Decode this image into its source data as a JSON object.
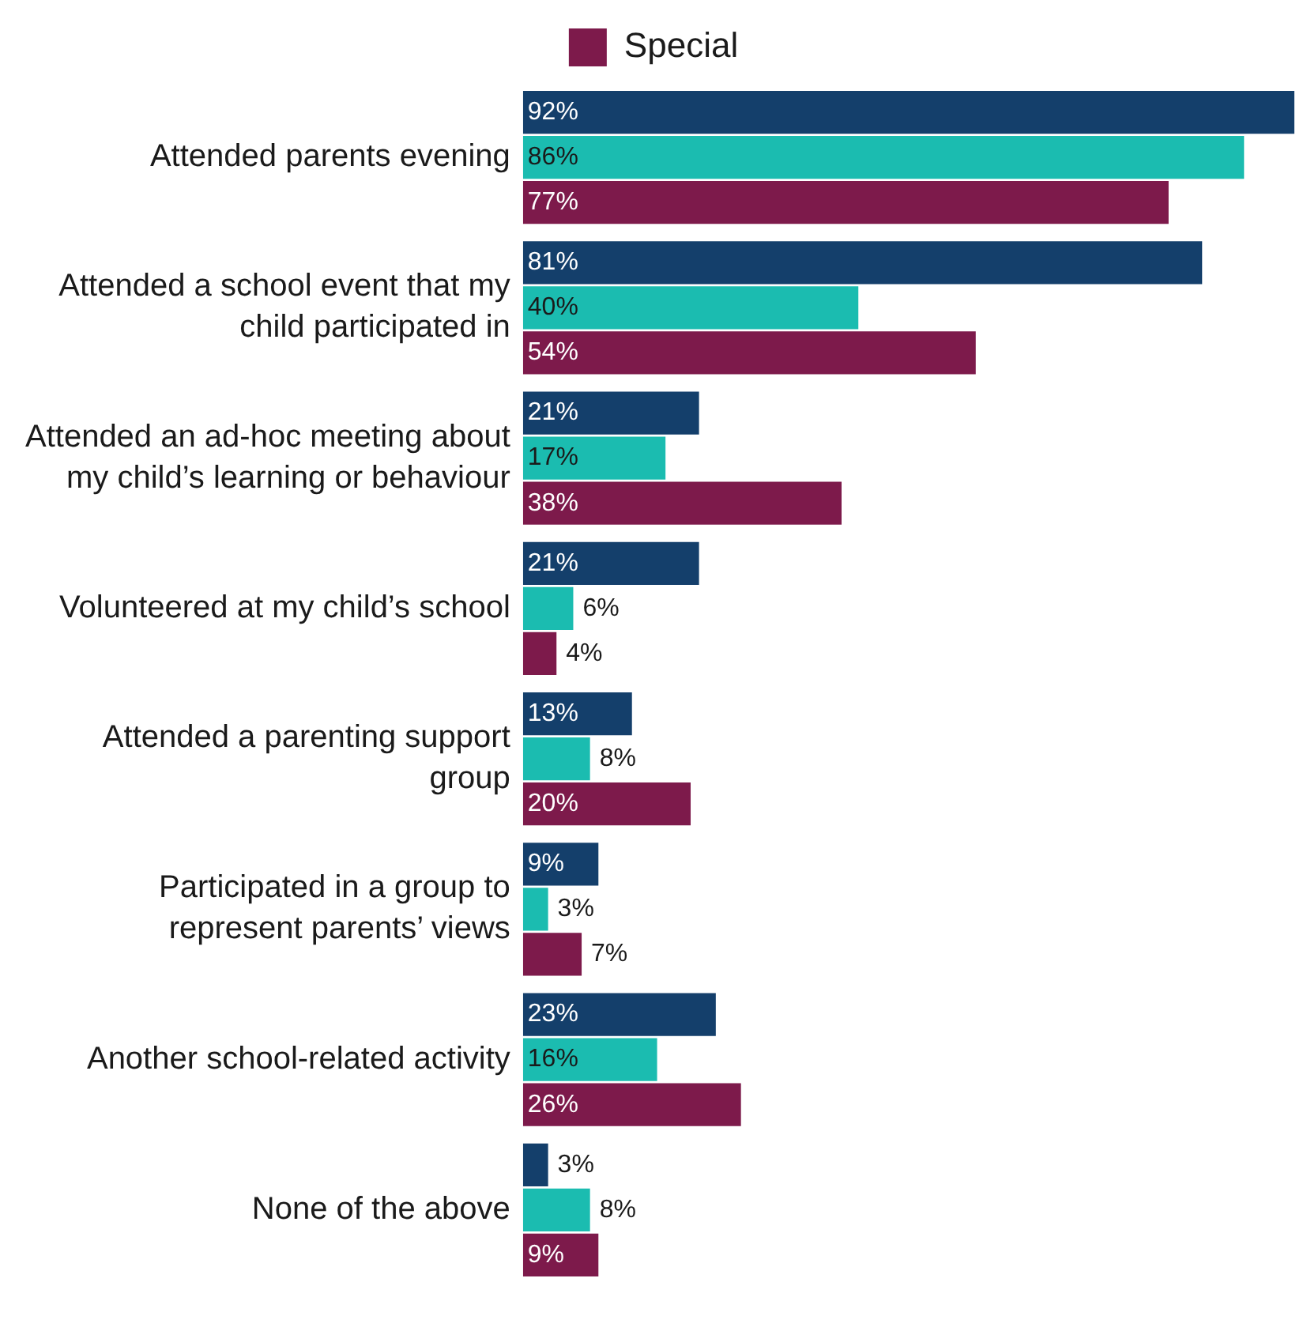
{
  "chart_data": {
    "type": "bar",
    "orientation": "horizontal",
    "categories": [
      "Attended parents evening",
      "Attended a school event that my child participated in",
      "Attended an ad-hoc meeting about my child’s learning or behaviour",
      "Volunteered at my child’s school",
      "Attended a parenting support group",
      "Participated in a group to represent parents’ views",
      "Another school-related activity",
      "None of the above"
    ],
    "series": [
      {
        "color": "#143f6b",
        "values": [
          92,
          81,
          21,
          21,
          13,
          9,
          23,
          3
        ],
        "value_labels": [
          "92%",
          "81%",
          "21%",
          "21%",
          "13%",
          "9%",
          "23%",
          "3%"
        ]
      },
      {
        "color": "#1bbcb0",
        "values": [
          86,
          40,
          17,
          6,
          8,
          3,
          16,
          8
        ],
        "value_labels": [
          "86%",
          "40%",
          "17%",
          "6%",
          "8%",
          "3%",
          "16%",
          "8%"
        ]
      },
      {
        "name": "Special",
        "color": "#7d1a4b",
        "values": [
          77,
          54,
          38,
          4,
          20,
          7,
          26,
          9
        ],
        "value_labels": [
          "77%",
          "54%",
          "38%",
          "4%",
          "20%",
          "7%",
          "26%",
          "9%"
        ]
      }
    ],
    "legend": "top",
    "grid": false,
    "tick_labels": "y"
  }
}
